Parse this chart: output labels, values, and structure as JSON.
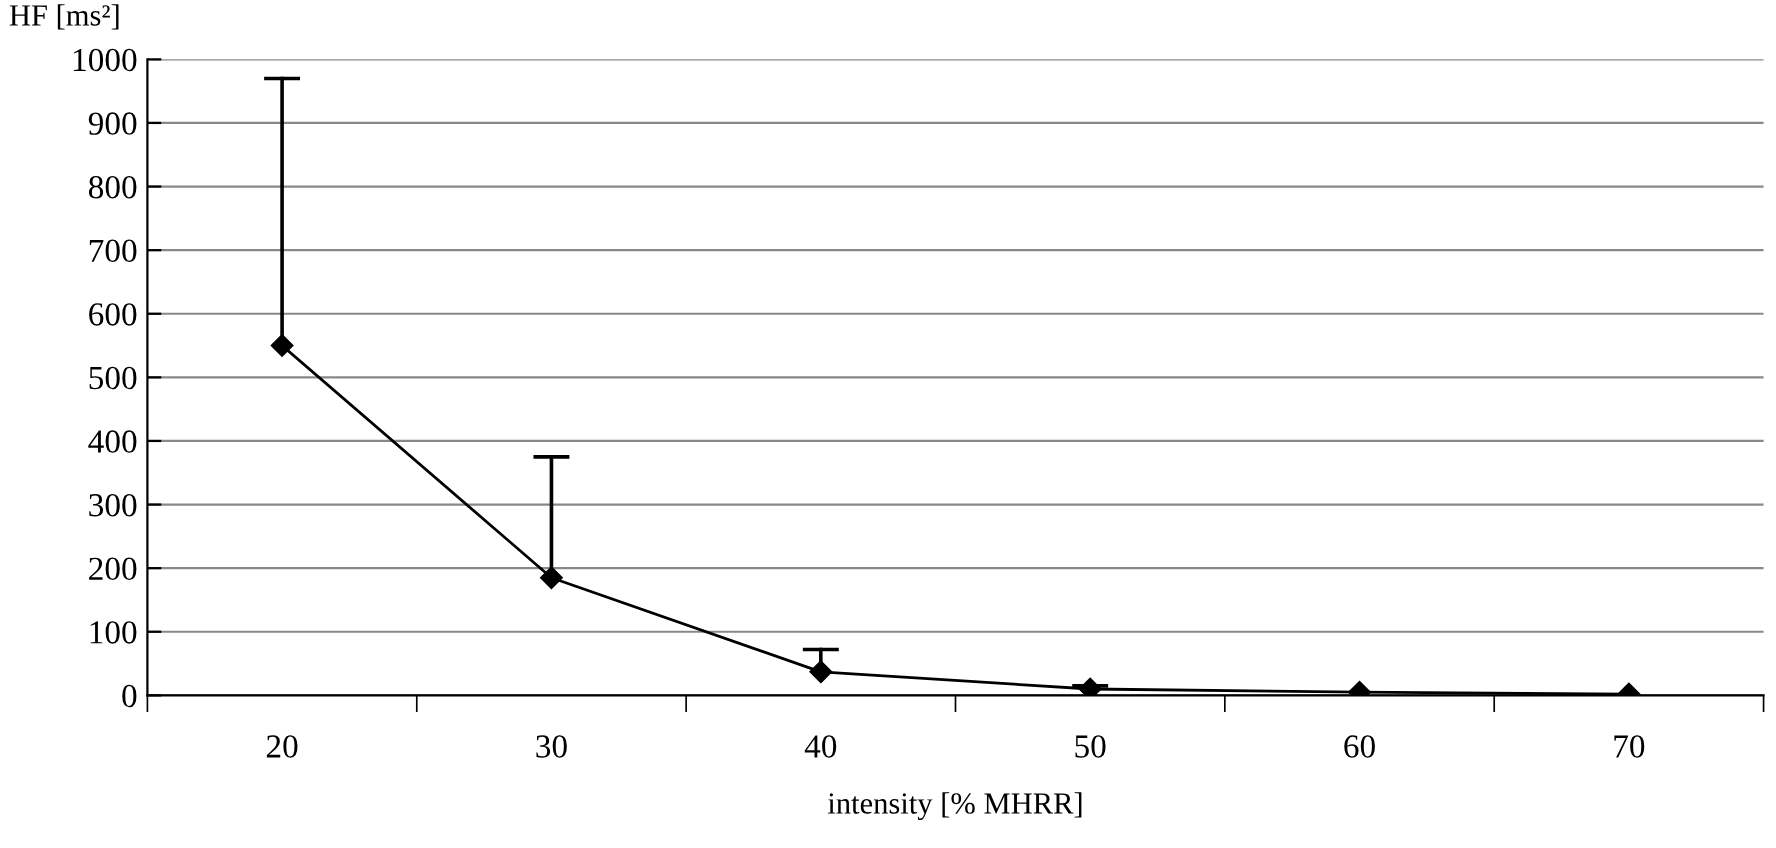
{
  "chart_data": {
    "type": "line",
    "xlabel": "intensity [% MHRR]",
    "ylabel": "HF [ms²]",
    "categories": [
      "20",
      "30",
      "40",
      "50",
      "60",
      "70"
    ],
    "series": [
      {
        "color": "#000000",
        "values": [
          550,
          185,
          37,
          10,
          5,
          2
        ],
        "errors": [
          [
            550,
            970
          ],
          [
            185,
            375
          ],
          [
            37,
            72
          ],
          [
            10,
            15
          ],
          null,
          null
        ]
      }
    ],
    "ylim": [
      0,
      1000
    ],
    "yticks": [
      0,
      100,
      200,
      300,
      400,
      500,
      600,
      700,
      800,
      900,
      1000
    ],
    "grid": "y",
    "marker": "diamond",
    "line_style": "solid"
  }
}
